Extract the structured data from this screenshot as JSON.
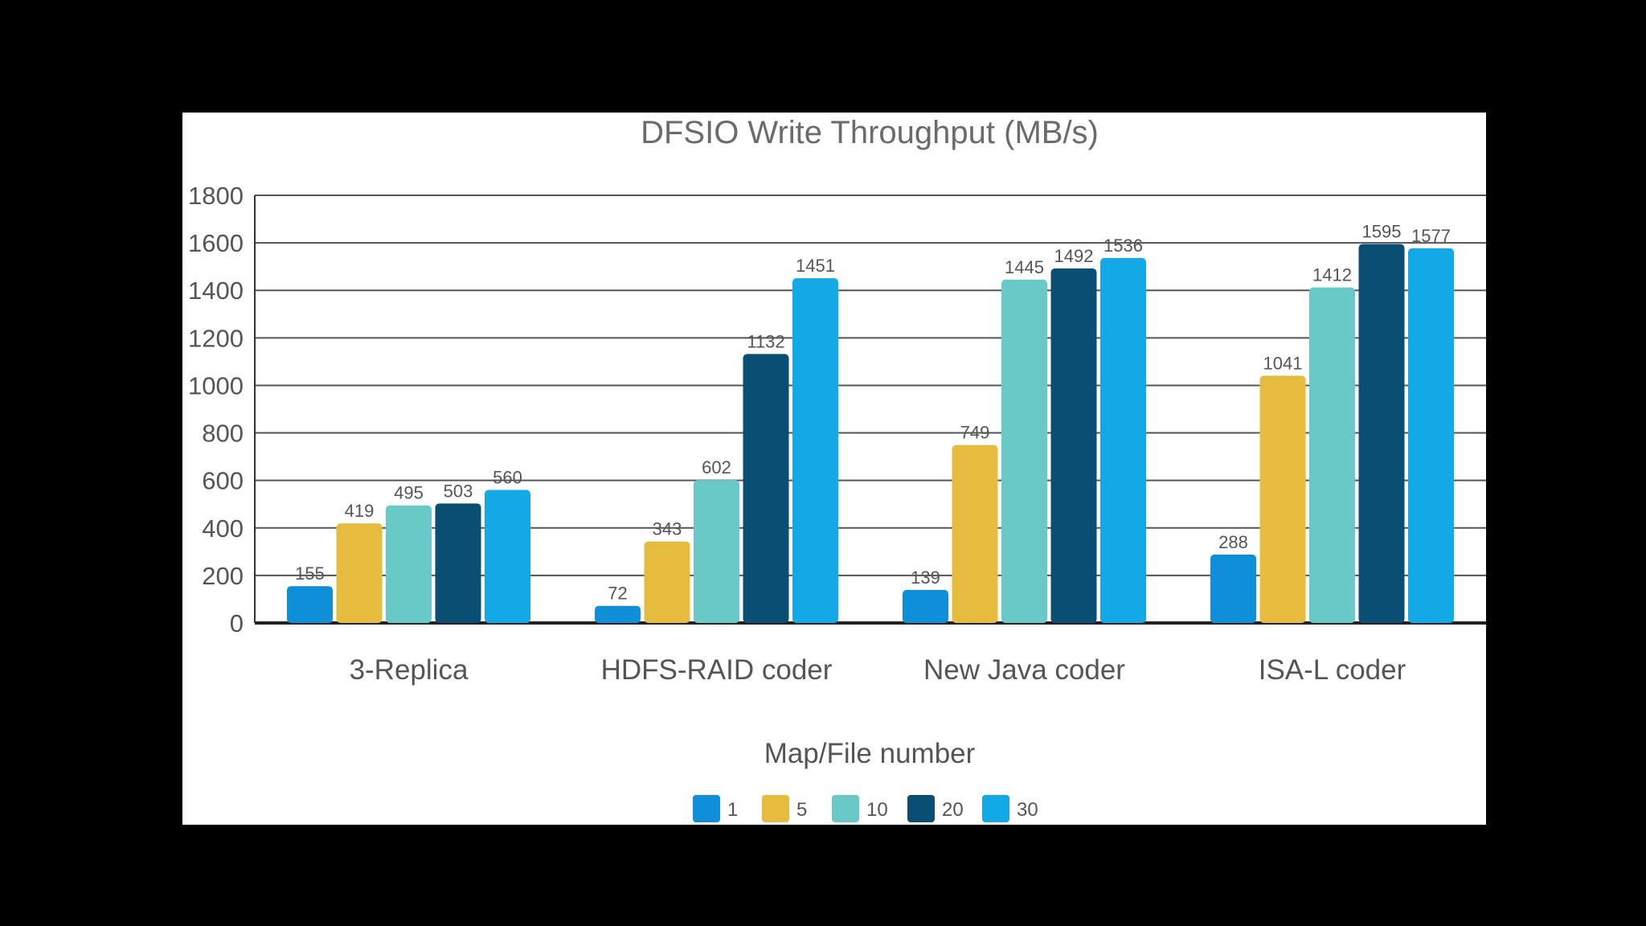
{
  "chart_data": {
    "type": "bar",
    "title": "DFSIO Write Throughput (MB/s)",
    "xlabel": "Map/File number",
    "ylabel": "",
    "ylim": [
      0,
      1800
    ],
    "yticks": [
      0,
      200,
      400,
      600,
      800,
      1000,
      1200,
      1400,
      1600,
      1800
    ],
    "grid": true,
    "legend_position": "bottom",
    "categories": [
      "3-Replica",
      "HDFS-RAID coder",
      "New Java coder",
      "ISA-L coder"
    ],
    "series": [
      {
        "name": "1",
        "color": "#0e8fd8",
        "values": [
          155,
          72,
          139,
          288
        ]
      },
      {
        "name": "5",
        "color": "#e6bc3e",
        "values": [
          419,
          343,
          749,
          1041
        ]
      },
      {
        "name": "10",
        "color": "#68c9c6",
        "values": [
          495,
          602,
          1445,
          1412
        ]
      },
      {
        "name": "20",
        "color": "#0b4e73",
        "values": [
          503,
          1132,
          1492,
          1595
        ]
      },
      {
        "name": "30",
        "color": "#12a9e6",
        "values": [
          560,
          1451,
          1536,
          1577
        ]
      }
    ]
  }
}
